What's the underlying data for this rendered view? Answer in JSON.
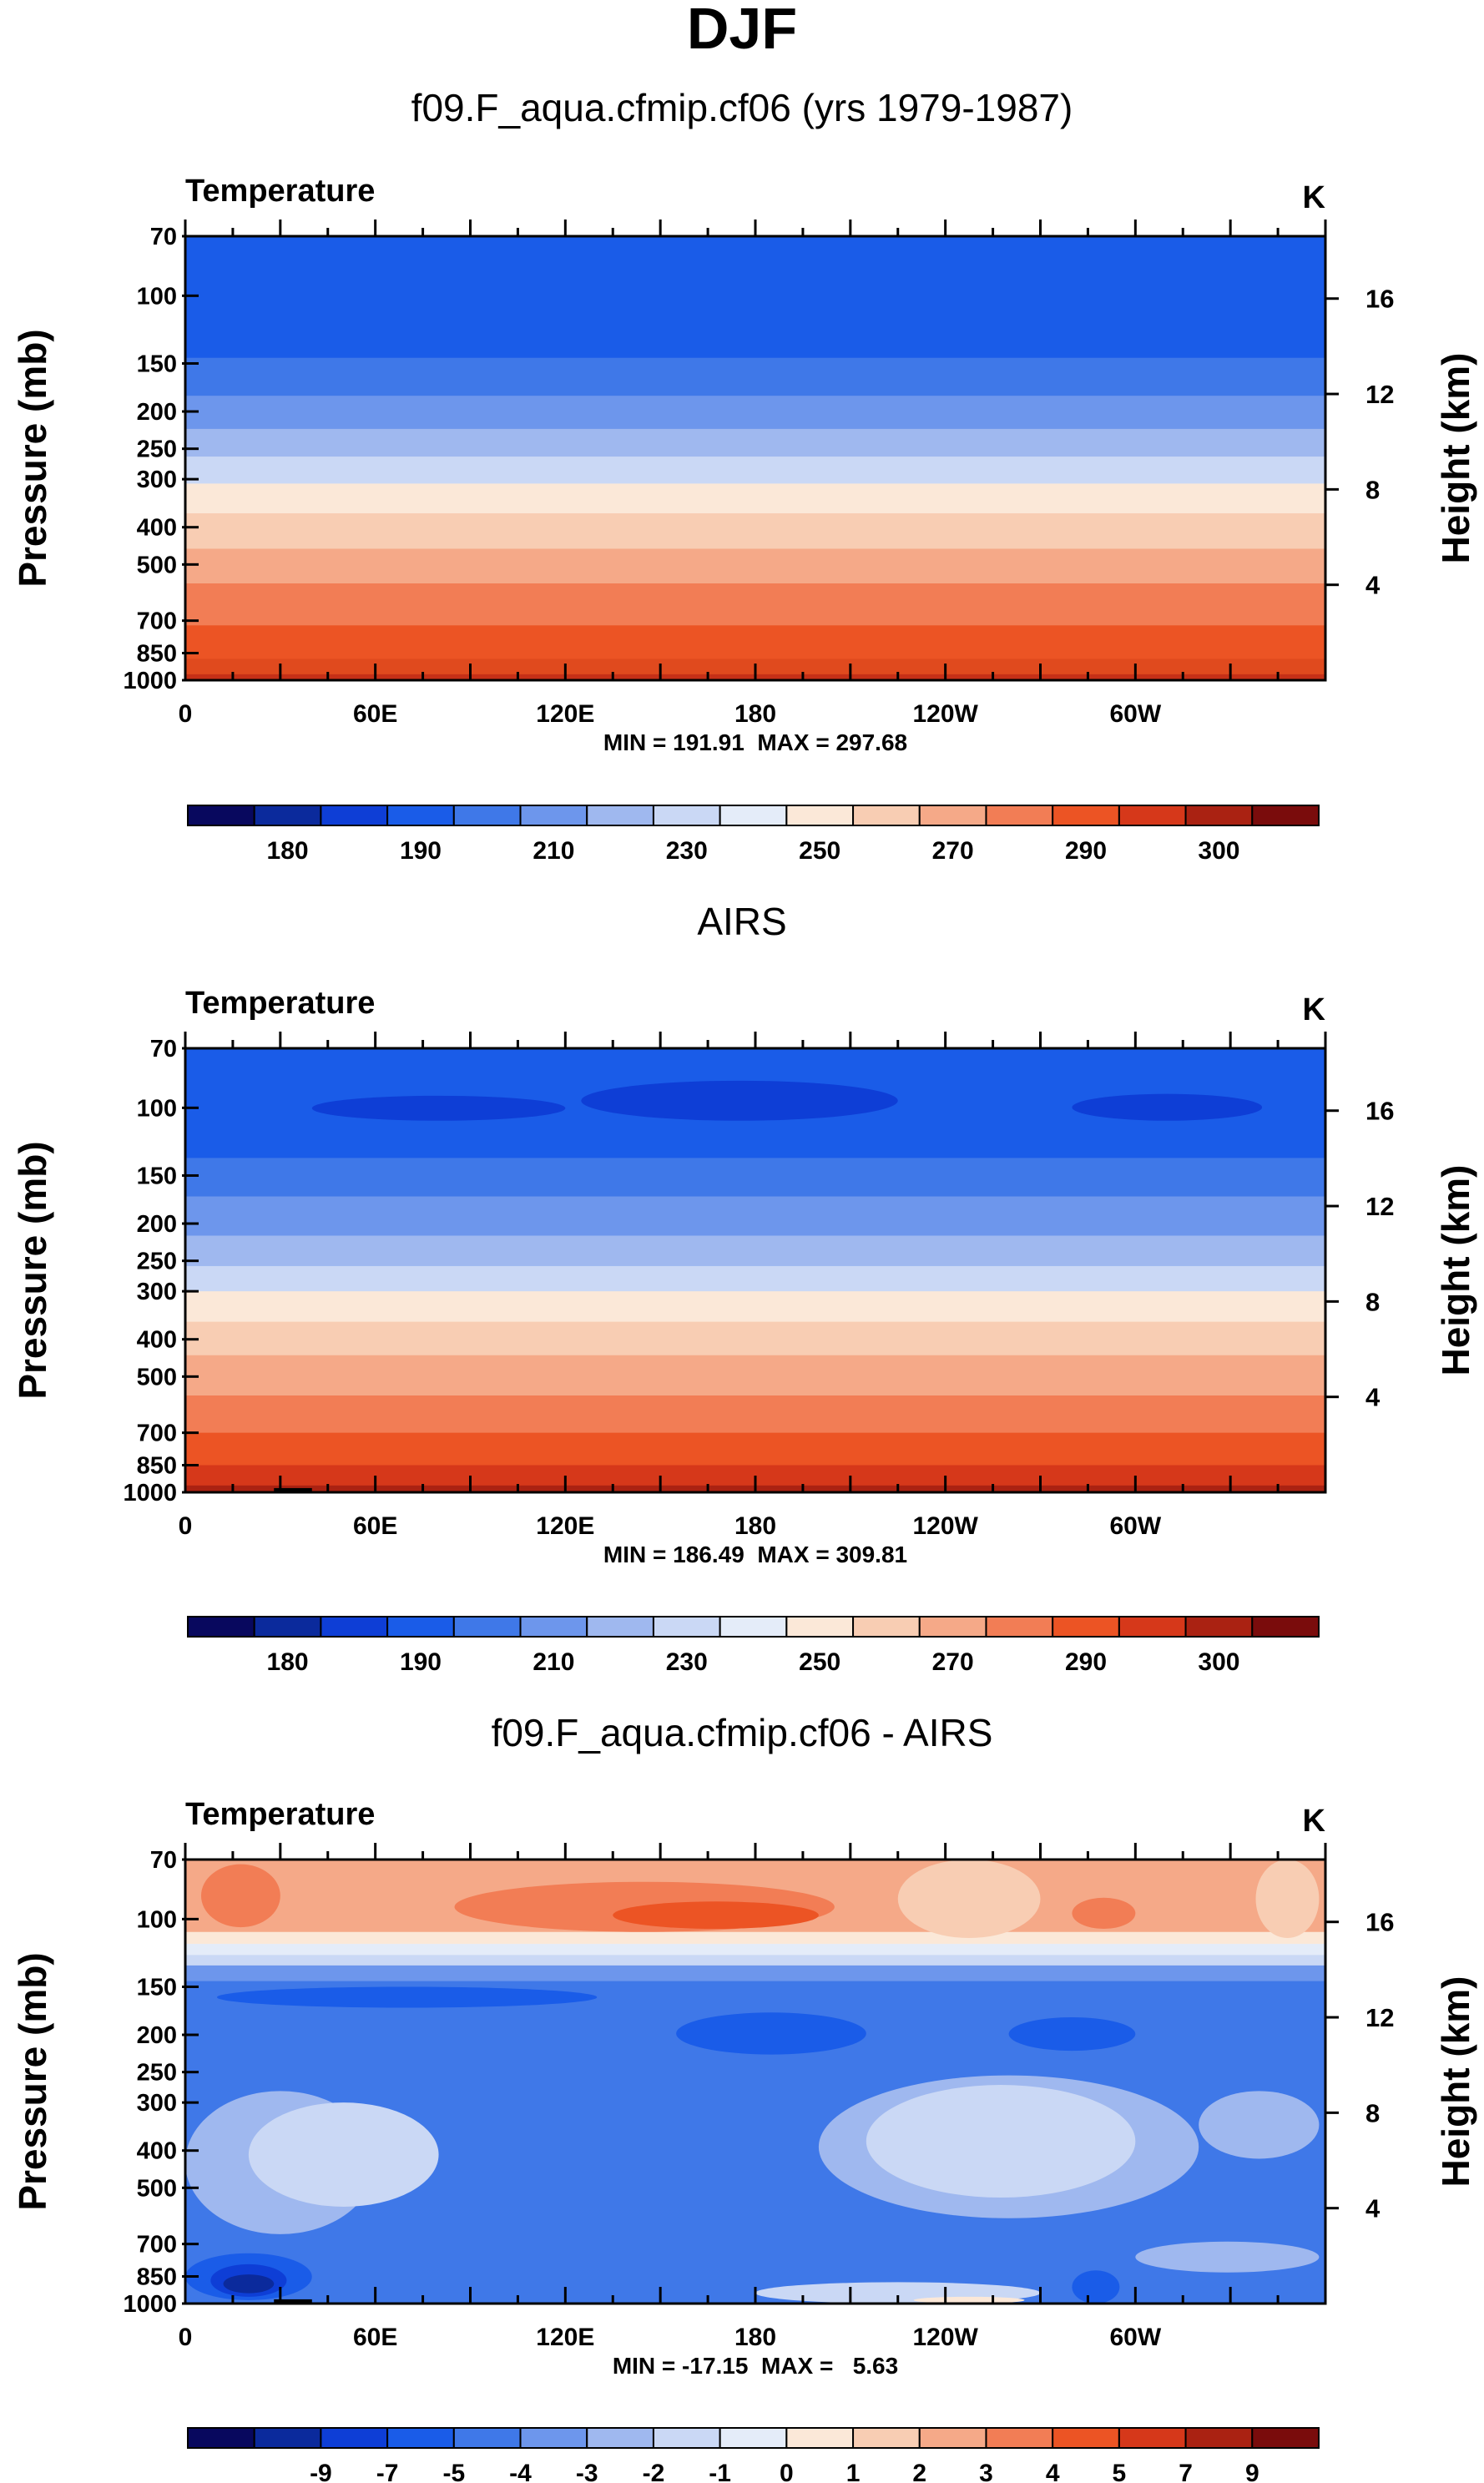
{
  "page_title": "DJF",
  "chart_data": [
    {
      "type": "heatmap",
      "title": "f09.F_aqua.cfmip.cf06 (yrs 1979-1987)",
      "variable": "Temperature",
      "units": "K",
      "ylabel": "Pressure (mb)",
      "ylabel_right": "Height (km)",
      "x_ticks": [
        "0",
        "60E",
        "120E",
        "180",
        "120W",
        "60W"
      ],
      "x_tick_values": [
        0,
        60,
        120,
        180,
        240,
        300
      ],
      "xlim": [
        0,
        360
      ],
      "y_ticks": [
        "70",
        "100",
        "150",
        "200",
        "250",
        "300",
        "400",
        "500",
        "700",
        "850",
        "1000"
      ],
      "y_tick_values": [
        70,
        100,
        150,
        200,
        250,
        300,
        400,
        500,
        700,
        850,
        1000
      ],
      "ylim_mb": [
        70,
        1000
      ],
      "height_ticks": [
        "16",
        "12",
        "8",
        "4"
      ],
      "height_tick_values": [
        16,
        12,
        8,
        4
      ],
      "min_max_text": "MIN = 191.91  MAX = 297.68",
      "colorbar_labels": [
        "180",
        "190",
        "210",
        "230",
        "250",
        "270",
        "290",
        "300"
      ],
      "colorbar_colors": [
        "#08085e",
        "#0b2a9c",
        "#0e3ed6",
        "#1a5ce8",
        "#3f78e8",
        "#6d96ec",
        "#9fb8ef",
        "#cad8f5",
        "#e4ecf9",
        "#fbe8d8",
        "#f8cdb3",
        "#f5a988",
        "#f27d55",
        "#ec5424",
        "#d6381a",
        "#aa2212",
        "#7a0c0c"
      ],
      "bands": [
        {
          "from": 70,
          "to": 145,
          "color": "#1a5ce8"
        },
        {
          "from": 145,
          "to": 182,
          "color": "#3f78e8"
        },
        {
          "from": 182,
          "to": 222,
          "color": "#6d96ec"
        },
        {
          "from": 222,
          "to": 262,
          "color": "#9fb8ef"
        },
        {
          "from": 262,
          "to": 308,
          "color": "#cad8f5"
        },
        {
          "from": 308,
          "to": 368,
          "color": "#fbe8d8"
        },
        {
          "from": 368,
          "to": 455,
          "color": "#f8cdb3"
        },
        {
          "from": 455,
          "to": 560,
          "color": "#f5a988"
        },
        {
          "from": 560,
          "to": 720,
          "color": "#f27d55"
        },
        {
          "from": 720,
          "to": 880,
          "color": "#ec5424"
        },
        {
          "from": 880,
          "to": 965,
          "color": "#e04a1e"
        },
        {
          "from": 965,
          "to": 1000,
          "color": "#c63017"
        }
      ]
    },
    {
      "type": "heatmap",
      "title": "AIRS",
      "variable": "Temperature",
      "units": "K",
      "ylabel": "Pressure (mb)",
      "ylabel_right": "Height (km)",
      "x_ticks": [
        "0",
        "60E",
        "120E",
        "180",
        "120W",
        "60W"
      ],
      "x_tick_values": [
        0,
        60,
        120,
        180,
        240,
        300
      ],
      "xlim": [
        0,
        360
      ],
      "y_ticks": [
        "70",
        "100",
        "150",
        "200",
        "250",
        "300",
        "400",
        "500",
        "700",
        "850",
        "1000"
      ],
      "y_tick_values": [
        70,
        100,
        150,
        200,
        250,
        300,
        400,
        500,
        700,
        850,
        1000
      ],
      "ylim_mb": [
        70,
        1000
      ],
      "height_ticks": [
        "16",
        "12",
        "8",
        "4"
      ],
      "height_tick_values": [
        16,
        12,
        8,
        4
      ],
      "min_max_text": "MIN = 186.49  MAX = 309.81",
      "colorbar_labels": [
        "180",
        "190",
        "210",
        "230",
        "250",
        "270",
        "290",
        "300"
      ],
      "colorbar_colors": [
        "#08085e",
        "#0b2a9c",
        "#0e3ed6",
        "#1a5ce8",
        "#3f78e8",
        "#6d96ec",
        "#9fb8ef",
        "#cad8f5",
        "#e4ecf9",
        "#fbe8d8",
        "#f8cdb3",
        "#f5a988",
        "#f27d55",
        "#ec5424",
        "#d6381a",
        "#aa2212",
        "#7a0c0c"
      ],
      "bands": [
        {
          "from": 70,
          "to": 135,
          "color": "#1a5ce8"
        },
        {
          "from": 135,
          "to": 170,
          "color": "#3f78e8"
        },
        {
          "from": 170,
          "to": 215,
          "color": "#6d96ec"
        },
        {
          "from": 215,
          "to": 258,
          "color": "#9fb8ef"
        },
        {
          "from": 258,
          "to": 300,
          "color": "#cad8f5"
        },
        {
          "from": 300,
          "to": 360,
          "color": "#fbe8d8"
        },
        {
          "from": 360,
          "to": 440,
          "color": "#f8cdb3"
        },
        {
          "from": 440,
          "to": 560,
          "color": "#f5a988"
        },
        {
          "from": 560,
          "to": 700,
          "color": "#f27d55"
        },
        {
          "from": 700,
          "to": 850,
          "color": "#ec5424"
        },
        {
          "from": 850,
          "to": 960,
          "color": "#d6381a"
        },
        {
          "from": 960,
          "to": 1000,
          "color": "#aa2212"
        }
      ],
      "blobs": [
        {
          "lon": [
            40,
            120
          ],
          "p": [
            93,
            108
          ],
          "color": "#0e3ed6"
        },
        {
          "lon": [
            125,
            225
          ],
          "p": [
            85,
            108
          ],
          "color": "#0e3ed6"
        },
        {
          "lon": [
            280,
            340
          ],
          "p": [
            92,
            108
          ],
          "color": "#0e3ed6"
        }
      ],
      "missing": [
        {
          "lon": [
            28,
            40
          ],
          "p": [
            975,
            1000
          ]
        }
      ]
    },
    {
      "type": "heatmap",
      "title": "f09.F_aqua.cfmip.cf06 - AIRS",
      "variable": "Temperature",
      "units": "K",
      "ylabel": "Pressure (mb)",
      "ylabel_right": "Height (km)",
      "x_ticks": [
        "0",
        "60E",
        "120E",
        "180",
        "120W",
        "60W"
      ],
      "x_tick_values": [
        0,
        60,
        120,
        180,
        240,
        300
      ],
      "xlim": [
        0,
        360
      ],
      "y_ticks": [
        "70",
        "100",
        "150",
        "200",
        "250",
        "300",
        "400",
        "500",
        "700",
        "850",
        "1000"
      ],
      "y_tick_values": [
        70,
        100,
        150,
        200,
        250,
        300,
        400,
        500,
        700,
        850,
        1000
      ],
      "ylim_mb": [
        70,
        1000
      ],
      "height_ticks": [
        "16",
        "12",
        "8",
        "4"
      ],
      "height_tick_values": [
        16,
        12,
        8,
        4
      ],
      "min_max_text": "MIN = -17.15  MAX =   5.63",
      "colorbar_labels": [
        "-9",
        "-7",
        "-5",
        "-4",
        "-3",
        "-2",
        "-1",
        "0",
        "1",
        "2",
        "3",
        "4",
        "5",
        "7",
        "9"
      ],
      "colorbar_colors": [
        "#08085e",
        "#0b2a9c",
        "#0e3ed6",
        "#1a5ce8",
        "#3f78e8",
        "#6d96ec",
        "#9fb8ef",
        "#cad8f5",
        "#e4ecf9",
        "#fbe8d8",
        "#f8cdb3",
        "#f5a988",
        "#f27d55",
        "#ec5424",
        "#d6381a",
        "#aa2212",
        "#7a0c0c"
      ],
      "bands": [
        {
          "from": 70,
          "to": 108,
          "color": "#f5a988"
        },
        {
          "from": 108,
          "to": 116,
          "color": "#fbe8d8"
        },
        {
          "from": 116,
          "to": 124,
          "color": "#e4ecf9"
        },
        {
          "from": 124,
          "to": 132,
          "color": "#cad8f5"
        },
        {
          "from": 132,
          "to": 145,
          "color": "#6d96ec"
        },
        {
          "from": 145,
          "to": 1000,
          "color": "#3f78e8"
        }
      ],
      "blobs": [
        {
          "lon": [
            5,
            30
          ],
          "p": [
            72,
            105
          ],
          "color": "#f27d55"
        },
        {
          "lon": [
            85,
            205
          ],
          "p": [
            80,
            108
          ],
          "color": "#f27d55"
        },
        {
          "lon": [
            135,
            200
          ],
          "p": [
            90,
            106
          ],
          "color": "#ec5424"
        },
        {
          "lon": [
            225,
            270
          ],
          "p": [
            70,
            112
          ],
          "color": "#f8cdb3"
        },
        {
          "lon": [
            338,
            358
          ],
          "p": [
            70,
            112
          ],
          "color": "#f8cdb3"
        },
        {
          "lon": [
            280,
            300
          ],
          "p": [
            88,
            106
          ],
          "color": "#f27d55"
        },
        {
          "lon": [
            10,
            130
          ],
          "p": [
            150,
            170
          ],
          "color": "#1a5ce8"
        },
        {
          "lon": [
            155,
            215
          ],
          "p": [
            175,
            225
          ],
          "color": "#1a5ce8"
        },
        {
          "lon": [
            260,
            300
          ],
          "p": [
            180,
            220
          ],
          "color": "#1a5ce8"
        },
        {
          "lon": [
            0,
            60
          ],
          "p": [
            280,
            660
          ],
          "color": "#9fb8ef"
        },
        {
          "lon": [
            20,
            80
          ],
          "p": [
            300,
            560
          ],
          "color": "#cad8f5"
        },
        {
          "lon": [
            200,
            320
          ],
          "p": [
            255,
            600
          ],
          "color": "#9fb8ef"
        },
        {
          "lon": [
            215,
            300
          ],
          "p": [
            270,
            530
          ],
          "color": "#cad8f5"
        },
        {
          "lon": [
            320,
            358
          ],
          "p": [
            280,
            420
          ],
          "color": "#9fb8ef"
        },
        {
          "lon": [
            300,
            358
          ],
          "p": [
            690,
            830
          ],
          "color": "#9fb8ef"
        },
        {
          "lon": [
            180,
            270
          ],
          "p": [
            880,
            1000
          ],
          "color": "#cad8f5"
        },
        {
          "lon": [
            230,
            265
          ],
          "p": [
            960,
            1000
          ],
          "color": "#fbe8d8"
        },
        {
          "lon": [
            0,
            40
          ],
          "p": [
            740,
            980
          ],
          "color": "#1a5ce8"
        },
        {
          "lon": [
            8,
            32
          ],
          "p": [
            790,
            960
          ],
          "color": "#0e3ed6"
        },
        {
          "lon": [
            12,
            28
          ],
          "p": [
            840,
            940
          ],
          "color": "#0b2a9c"
        },
        {
          "lon": [
            280,
            295
          ],
          "p": [
            820,
            1000
          ],
          "color": "#1a5ce8"
        }
      ],
      "missing": [
        {
          "lon": [
            28,
            40
          ],
          "p": [
            975,
            1000
          ]
        }
      ]
    }
  ]
}
